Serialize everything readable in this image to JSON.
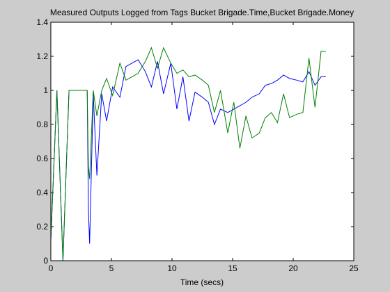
{
  "chart_data": {
    "type": "line",
    "title": "Measured Outputs Logged from Tags Bucket Brigade.Time,Bucket Brigade.Money",
    "xlabel": "Time (secs)",
    "ylabel": "",
    "xlim": [
      0,
      25
    ],
    "ylim": [
      0,
      1.4
    ],
    "xticks": [
      0,
      5,
      10,
      15,
      20,
      25
    ],
    "yticks": [
      0,
      0.2,
      0.4,
      0.6,
      0.8,
      1,
      1.2,
      1.4
    ],
    "xtick_labels": [
      "0",
      "5",
      "10",
      "15",
      "20",
      "25"
    ],
    "ytick_labels": [
      "0",
      "0.2",
      "0.4",
      "0.6",
      "0.8",
      "1",
      "1.2",
      "1.4"
    ],
    "grid": false,
    "legend": false,
    "series": [
      {
        "color": "#0000ff",
        "x": [
          0,
          0.5,
          1.0,
          1.5,
          2.0,
          2.5,
          3.0,
          3.1,
          3.2,
          3.5,
          3.8,
          4.2,
          4.6,
          5.1,
          5.7,
          6.2,
          6.7,
          7.2,
          7.8,
          8.3,
          8.8,
          9.3,
          9.9,
          10.4,
          10.9,
          11.4,
          11.9,
          12.5,
          13.0,
          13.5,
          14.0,
          14.6,
          15.1,
          15.6,
          16.1,
          16.6,
          17.2,
          17.7,
          18.2,
          18.7,
          19.2,
          19.7,
          20.3,
          20.8,
          21.3,
          21.8,
          22.3,
          22.7
        ],
        "y": [
          0.12,
          1.0,
          0.0,
          1.0,
          1.0,
          1.0,
          1.0,
          0.3,
          0.1,
          0.98,
          0.5,
          0.98,
          0.82,
          1.02,
          0.96,
          1.14,
          1.16,
          1.18,
          1.11,
          1.02,
          1.17,
          0.98,
          1.16,
          0.89,
          1.08,
          0.82,
          0.99,
          0.96,
          0.93,
          0.8,
          0.89,
          0.87,
          0.89,
          0.91,
          0.93,
          0.96,
          0.98,
          1.03,
          1.04,
          1.06,
          1.09,
          1.07,
          1.06,
          1.05,
          1.11,
          1.03,
          1.08,
          1.08
        ]
      },
      {
        "color": "#007f00",
        "x": [
          0,
          0.5,
          1.0,
          1.5,
          2.0,
          2.5,
          3.0,
          3.1,
          3.2,
          3.5,
          3.8,
          4.2,
          4.6,
          5.1,
          5.7,
          6.2,
          6.7,
          7.2,
          7.8,
          8.3,
          8.8,
          9.3,
          9.9,
          10.4,
          10.9,
          11.4,
          11.9,
          12.5,
          13.0,
          13.5,
          14.0,
          14.6,
          15.1,
          15.6,
          16.1,
          16.6,
          17.2,
          17.7,
          18.2,
          18.7,
          19.2,
          19.7,
          20.3,
          20.8,
          21.3,
          21.8,
          22.3,
          22.7
        ],
        "y": [
          0.12,
          1.0,
          0.0,
          1.0,
          1.0,
          1.0,
          1.0,
          0.55,
          0.48,
          1.0,
          0.85,
          1.0,
          1.07,
          0.97,
          1.16,
          1.06,
          1.08,
          1.1,
          1.17,
          1.25,
          1.13,
          1.25,
          1.16,
          1.1,
          1.12,
          1.08,
          1.09,
          1.06,
          1.03,
          0.87,
          1.0,
          0.75,
          0.93,
          0.66,
          0.85,
          0.72,
          0.75,
          0.84,
          0.87,
          0.81,
          0.98,
          0.84,
          0.86,
          0.87,
          1.19,
          0.9,
          1.23,
          1.23
        ]
      }
    ]
  }
}
